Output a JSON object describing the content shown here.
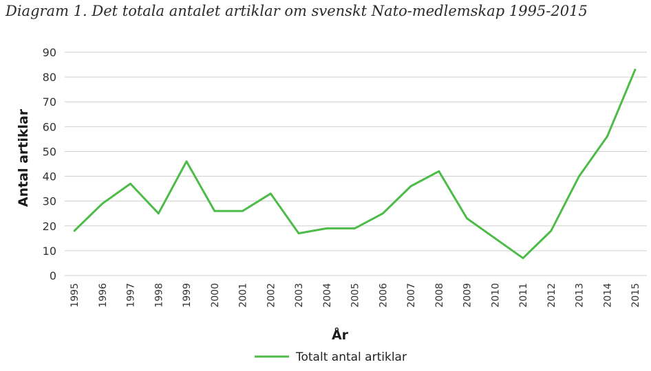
{
  "chart_data": {
    "type": "line",
    "title": "Diagram 1. Det totala antalet artiklar om svenskt Nato-medlemskap 1995-2015",
    "xlabel": "År",
    "ylabel": "Antal artiklar",
    "ylim": [
      0,
      90
    ],
    "y_ticks": [
      0,
      10,
      20,
      30,
      40,
      50,
      60,
      70,
      80,
      90
    ],
    "grid": true,
    "legend_position": "bottom-center",
    "categories": [
      "1995",
      "1996",
      "1997",
      "1998",
      "1999",
      "2000",
      "2001",
      "2002",
      "2003",
      "2004",
      "2005",
      "2006",
      "2007",
      "2008",
      "2009",
      "2010",
      "2011",
      "2012",
      "2013",
      "2014",
      "2015"
    ],
    "series": [
      {
        "name": "Totalt antal artiklar",
        "color": "#4cbb47",
        "values": [
          18,
          29,
          37,
          25,
          46,
          26,
          26,
          33,
          17,
          19,
          19,
          25,
          36,
          42,
          23,
          15,
          7,
          18,
          40,
          56,
          83
        ]
      }
    ]
  }
}
